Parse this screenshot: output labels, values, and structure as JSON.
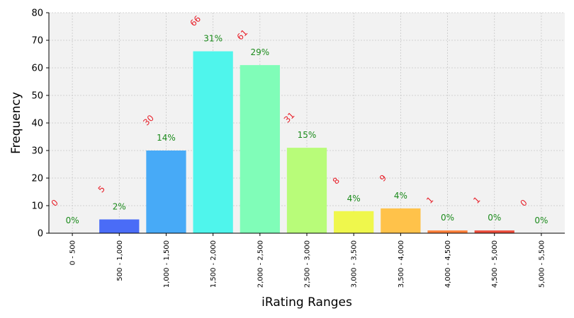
{
  "chart_data": {
    "type": "bar",
    "xlabel": "iRating Ranges",
    "ylabel": "Frequency",
    "ylim": [
      0,
      80
    ],
    "yticks": [
      0,
      10,
      20,
      30,
      40,
      50,
      60,
      70,
      80
    ],
    "grid": true,
    "categories": [
      "0 - 500",
      "500 - 1,000",
      "1,000 - 1,500",
      "1,500 - 2,000",
      "2,000 - 2,500",
      "2,500 - 3,000",
      "3,000 - 3,500",
      "3,500 - 4,000",
      "4,000 - 4,500",
      "4,500 - 5,000",
      "5,000 - 5,500"
    ],
    "values": [
      0,
      5,
      30,
      66,
      61,
      31,
      8,
      9,
      1,
      1,
      0
    ],
    "percent_labels": [
      "0%",
      "2%",
      "14%",
      "31%",
      "29%",
      "15%",
      "4%",
      "4%",
      "0%",
      "0%",
      "0%"
    ],
    "colors": [
      "#5a1bd8",
      "#4a6cf7",
      "#47aaf7",
      "#4ff5ec",
      "#80fdb8",
      "#b8fc79",
      "#eff74c",
      "#ffc24a",
      "#ff7f3a",
      "#eb4d3c",
      "#c9182d"
    ],
    "count_label_color": "#e8202a",
    "percent_label_color": "#1a8a1a",
    "plot_background": "#f2f2f2"
  }
}
